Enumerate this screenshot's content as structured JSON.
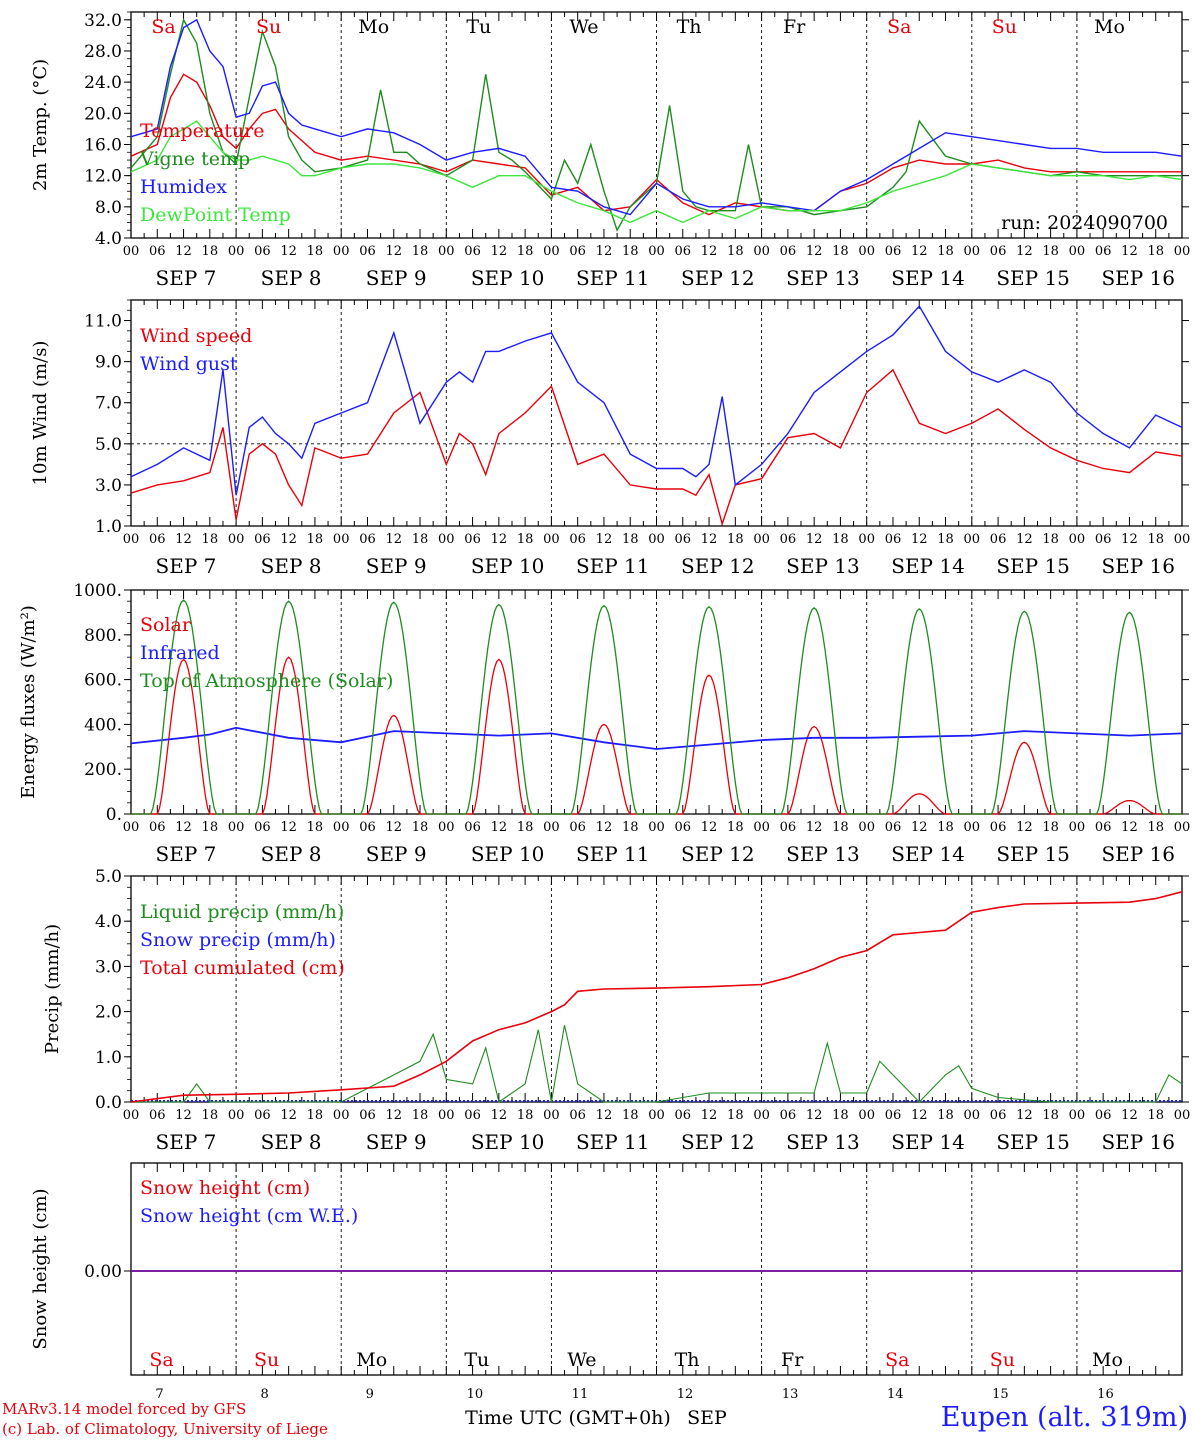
{
  "run_label": "run: 2024090700",
  "credits": [
    "MARv3.14 model forced by GFS",
    "(c) Lab. of Climatology, University of Liege"
  ],
  "station": "Eupen (alt. 319m)",
  "xaxis": {
    "hours": [
      "00",
      "06",
      "12",
      "18"
    ],
    "last_hour": "00",
    "days": [
      "SEP  7",
      "SEP  8",
      "SEP  9",
      "SEP 10",
      "SEP 11",
      "SEP 12",
      "SEP 13",
      "SEP 14",
      "SEP 15",
      "SEP 16"
    ],
    "weekdays": [
      "Sa",
      "Su",
      "Mo",
      "Tu",
      "We",
      "Th",
      "Fr",
      "Sa",
      "Su",
      "Mo"
    ],
    "weekday_colors": [
      "#e8000b",
      "#e8000b",
      "#000000",
      "#000000",
      "#000000",
      "#000000",
      "#000000",
      "#e8000b",
      "#e8000b",
      "#000000"
    ],
    "day_numbers": [
      "7",
      "8",
      "9",
      "10",
      "11",
      "12",
      "13",
      "14",
      "15",
      "16"
    ],
    "bottom_label": "Time UTC (GMT+0h)",
    "bottom_month": "SEP"
  },
  "colors": {
    "red": "#e8000b",
    "blue": "#1c1cff",
    "green": "#1e8c1e",
    "lightgreen": "#3de63d",
    "purple": "#7a1fa2"
  },
  "chart_data": [
    {
      "type": "line",
      "ylabel": "2m Temp. (°C)",
      "ylim": [
        4,
        33
      ],
      "yticks": [
        4,
        8,
        12,
        16,
        20,
        24,
        28,
        32
      ],
      "ytick_labels": [
        "4.0",
        "8.0",
        "12.0",
        "16.0",
        "20.0",
        "24.0",
        "28.0",
        "32.0"
      ],
      "x_unit": "hours since Sep 7 00 UTC",
      "series": [
        {
          "name": "Temperature",
          "color": "red",
          "x": [
            0,
            6,
            9,
            12,
            15,
            18,
            21,
            24,
            27,
            30,
            33,
            36,
            39,
            42,
            48,
            54,
            60,
            66,
            72,
            78,
            84,
            90,
            96,
            102,
            108,
            114,
            120,
            126,
            132,
            138,
            144,
            150,
            156,
            162,
            168,
            174,
            180,
            186,
            192,
            198,
            204,
            210,
            216,
            222,
            228,
            234,
            240
          ],
          "values": [
            14.5,
            16,
            22,
            25,
            24,
            21,
            17,
            15.5,
            18,
            20,
            20.5,
            18,
            16.5,
            15,
            14,
            14.5,
            14,
            13.5,
            12.5,
            14,
            13.5,
            13,
            9.5,
            10.5,
            7.5,
            8,
            11.5,
            8.5,
            7,
            8.5,
            8,
            7.5,
            7.5,
            10,
            11,
            13,
            14,
            13.5,
            13.5,
            14,
            13,
            12.5,
            12.5,
            12.5,
            12.5,
            12.5,
            12.5
          ]
        },
        {
          "name": "Vigne temp",
          "color": "green",
          "x": [
            0,
            6,
            9,
            12,
            15,
            18,
            21,
            24,
            27,
            30,
            33,
            36,
            39,
            42,
            48,
            54,
            57,
            60,
            63,
            66,
            72,
            78,
            81,
            84,
            87,
            90,
            96,
            99,
            102,
            105,
            108,
            111,
            114,
            120,
            123,
            126,
            129,
            132,
            138,
            141,
            144,
            150,
            156,
            162,
            168,
            174,
            177,
            180,
            186,
            192,
            198,
            204,
            210,
            216,
            222,
            228,
            234,
            240
          ],
          "values": [
            13,
            17,
            25,
            32,
            29,
            20,
            15,
            13.5,
            22,
            30.5,
            26,
            17,
            14,
            12.5,
            13,
            14,
            23,
            15,
            15,
            13.5,
            12,
            14,
            25,
            15,
            14,
            12.5,
            9,
            14,
            11,
            16,
            10,
            5,
            8,
            11,
            21,
            10,
            8,
            7.5,
            7.5,
            16,
            8,
            8,
            7,
            7.5,
            8,
            10.5,
            12.5,
            19,
            14.5,
            13.5,
            13,
            12.5,
            12,
            12.5,
            12,
            12,
            12,
            12
          ]
        },
        {
          "name": "Humidex",
          "color": "blue",
          "x": [
            0,
            6,
            9,
            12,
            15,
            18,
            21,
            24,
            27,
            30,
            33,
            36,
            39,
            42,
            48,
            54,
            60,
            66,
            72,
            78,
            84,
            90,
            96,
            102,
            108,
            114,
            120,
            126,
            132,
            138,
            144,
            150,
            156,
            162,
            168,
            174,
            180,
            186,
            192,
            198,
            204,
            210,
            216,
            222,
            228,
            234,
            240
          ],
          "values": [
            17,
            18,
            26,
            31,
            32,
            28,
            26,
            19.5,
            20,
            23.5,
            24,
            20,
            18.5,
            18,
            17,
            18,
            17.5,
            16,
            14,
            15,
            15.5,
            14.5,
            10.5,
            10,
            8,
            7,
            11,
            9,
            8,
            8,
            8.5,
            8,
            7.5,
            10,
            11.5,
            13.5,
            15.5,
            17.5,
            17,
            16.5,
            16,
            15.5,
            15.5,
            15,
            15,
            15,
            14.5
          ]
        },
        {
          "name": "DewPoint Temp",
          "color": "lightgreen",
          "x": [
            0,
            6,
            9,
            12,
            15,
            18,
            21,
            24,
            27,
            30,
            33,
            36,
            39,
            42,
            48,
            54,
            60,
            66,
            72,
            78,
            84,
            90,
            96,
            102,
            108,
            114,
            120,
            126,
            132,
            138,
            144,
            150,
            156,
            162,
            168,
            174,
            180,
            186,
            192,
            198,
            204,
            210,
            216,
            222,
            228,
            234,
            240
          ],
          "values": [
            12.5,
            14,
            17,
            18,
            19,
            17,
            15,
            14,
            14,
            14.5,
            14,
            13.5,
            12,
            12,
            13,
            13.5,
            13.5,
            13,
            12,
            10.5,
            12,
            12,
            10,
            8.5,
            7.5,
            6,
            7.5,
            6,
            7.5,
            6.5,
            8,
            7.5,
            7.5,
            7.5,
            8.5,
            10,
            11,
            12,
            13.5,
            13,
            12.5,
            12,
            12,
            12,
            11.5,
            12,
            11.5
          ]
        }
      ]
    },
    {
      "type": "line",
      "ylabel": "10m Wind (m/s)",
      "ylim": [
        1,
        12
      ],
      "yticks": [
        1,
        3,
        5,
        7,
        9,
        11
      ],
      "ytick_labels": [
        "1.0",
        "3.0",
        "5.0",
        "7.0",
        "9.0",
        "11.0"
      ],
      "reference_line": 5,
      "series": [
        {
          "name": "Wind speed",
          "color": "red",
          "x": [
            0,
            6,
            12,
            18,
            21,
            24,
            27,
            30,
            33,
            36,
            39,
            42,
            48,
            54,
            60,
            66,
            72,
            75,
            78,
            81,
            84,
            90,
            96,
            102,
            108,
            114,
            120,
            126,
            129,
            132,
            135,
            138,
            144,
            150,
            156,
            162,
            168,
            174,
            180,
            186,
            192,
            198,
            204,
            210,
            216,
            222,
            228,
            234,
            240
          ],
          "values": [
            2.6,
            3,
            3.2,
            3.6,
            5.8,
            1.3,
            4.5,
            5,
            4.5,
            3,
            2,
            4.8,
            4.3,
            4.5,
            6.5,
            7.5,
            4,
            5.5,
            5,
            3.5,
            5.5,
            6.5,
            7.8,
            4,
            4.5,
            3,
            2.8,
            2.8,
            2.5,
            3.5,
            1.1,
            3,
            3.3,
            5.3,
            5.5,
            4.8,
            7.5,
            8.6,
            6,
            5.5,
            6,
            6.7,
            5.7,
            4.8,
            4.2,
            3.8,
            3.6,
            4.6,
            4.4
          ]
        },
        {
          "name": "Wind gust",
          "color": "blue",
          "x": [
            0,
            6,
            12,
            18,
            21,
            24,
            27,
            30,
            33,
            36,
            39,
            42,
            48,
            54,
            60,
            66,
            72,
            75,
            78,
            81,
            84,
            90,
            96,
            102,
            108,
            114,
            120,
            126,
            129,
            132,
            135,
            138,
            144,
            150,
            156,
            162,
            168,
            174,
            180,
            186,
            192,
            198,
            204,
            210,
            216,
            222,
            228,
            234,
            240
          ],
          "values": [
            3.4,
            4,
            4.8,
            4.2,
            8.6,
            2.5,
            5.8,
            6.3,
            5.5,
            5,
            4.3,
            6,
            6.5,
            7,
            10.4,
            6,
            8,
            8.5,
            8,
            9.5,
            9.5,
            10,
            10.4,
            8,
            7,
            4.5,
            3.8,
            3.8,
            3.4,
            4,
            7.3,
            3,
            4,
            5.5,
            7.5,
            8.5,
            9.5,
            10.3,
            11.7,
            9.5,
            8.5,
            8,
            8.6,
            8,
            6.5,
            5.5,
            4.8,
            6.4,
            5.8
          ]
        }
      ]
    },
    {
      "type": "line",
      "ylabel": "Energy fluxes (W/m²)",
      "ylim": [
        0,
        1000
      ],
      "yticks": [
        0,
        200,
        400,
        600,
        800,
        1000
      ],
      "ytick_labels": [
        "0.",
        "200.",
        "400.",
        "600.",
        "800.",
        "1000."
      ],
      "series": [
        {
          "name": "Solar",
          "color": "red",
          "peaks": [
            [
              0,
              690
            ],
            [
              1,
              700
            ],
            [
              2,
              440
            ],
            [
              3,
              690
            ],
            [
              4,
              400
            ],
            [
              5,
              620
            ],
            [
              6,
              390
            ],
            [
              7,
              90
            ],
            [
              8,
              320
            ],
            [
              9,
              60
            ]
          ]
        },
        {
          "name": "Infrared",
          "color": "blue",
          "x": [
            0,
            12,
            18,
            24,
            36,
            48,
            60,
            72,
            84,
            96,
            108,
            120,
            132,
            144,
            156,
            168,
            180,
            192,
            204,
            216,
            228,
            240
          ],
          "values": [
            315,
            340,
            355,
            385,
            340,
            320,
            370,
            360,
            350,
            360,
            320,
            290,
            310,
            330,
            340,
            340,
            345,
            350,
            370,
            360,
            350,
            360
          ]
        },
        {
          "name": "Top of Atmosphere (Solar)",
          "color": "green",
          "peaks": [
            [
              0,
              955
            ],
            [
              1,
              950
            ],
            [
              2,
              945
            ],
            [
              3,
              935
            ],
            [
              4,
              930
            ],
            [
              5,
              925
            ],
            [
              6,
              920
            ],
            [
              7,
              915
            ],
            [
              8,
              905
            ],
            [
              9,
              900
            ]
          ]
        }
      ]
    },
    {
      "type": "line",
      "ylabel": "Precip (mm/h)",
      "ylim": [
        0,
        5
      ],
      "yticks": [
        0,
        1,
        2,
        3,
        4,
        5
      ],
      "ytick_labels": [
        "0.0",
        "1.0",
        "2.0",
        "3.0",
        "4.0",
        "5.0"
      ],
      "series": [
        {
          "name": "Liquid precip (mm/h)",
          "color": "green",
          "x": [
            0,
            12,
            15,
            18,
            24,
            48,
            54,
            60,
            66,
            69,
            72,
            78,
            81,
            84,
            90,
            93,
            96,
            99,
            102,
            108,
            120,
            132,
            144,
            156,
            159,
            162,
            168,
            171,
            174,
            180,
            186,
            189,
            192,
            198,
            210,
            222,
            234,
            237,
            240
          ],
          "values": [
            0,
            0,
            0.4,
            0,
            0,
            0,
            0.3,
            0.6,
            0.9,
            1.5,
            0.5,
            0.4,
            1.2,
            0,
            0.4,
            1.6,
            0,
            1.7,
            0.4,
            0,
            0,
            0.2,
            0.2,
            0.2,
            1.3,
            0.2,
            0.2,
            0.9,
            0.6,
            0,
            0.6,
            0.8,
            0.3,
            0.1,
            0,
            0,
            0,
            0.6,
            0.4
          ]
        },
        {
          "name": "Snow precip (mm/h)",
          "color": "blue",
          "x": [
            0,
            240
          ],
          "values": [
            0,
            0
          ]
        },
        {
          "name": "Total cumulated (cm)",
          "color": "red",
          "x": [
            0,
            12,
            24,
            36,
            48,
            60,
            66,
            72,
            78,
            84,
            90,
            96,
            99,
            102,
            108,
            120,
            132,
            144,
            150,
            156,
            162,
            168,
            174,
            180,
            186,
            192,
            198,
            204,
            216,
            228,
            234,
            240
          ],
          "values": [
            0,
            0.15,
            0.17,
            0.2,
            0.27,
            0.35,
            0.6,
            0.9,
            1.35,
            1.6,
            1.75,
            2,
            2.15,
            2.45,
            2.5,
            2.52,
            2.55,
            2.6,
            2.75,
            2.95,
            3.2,
            3.35,
            3.7,
            3.75,
            3.8,
            4.2,
            4.3,
            4.38,
            4.4,
            4.42,
            4.5,
            4.65
          ]
        }
      ]
    },
    {
      "type": "line",
      "ylabel": "Snow height (cm)",
      "ytick_labels": [
        "0.00"
      ],
      "series": [
        {
          "name": "Snow height (cm)",
          "color": "red",
          "x": [
            0,
            240
          ],
          "values": [
            0,
            0
          ]
        },
        {
          "name": "Snow height (cm W.E.)",
          "color": "blue",
          "x": [
            0,
            240
          ],
          "values": [
            0,
            0
          ]
        }
      ]
    }
  ]
}
